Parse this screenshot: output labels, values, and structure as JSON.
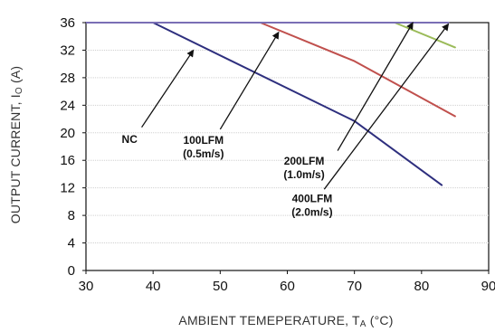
{
  "chart_data": {
    "type": "line",
    "xlabel": "AMBIENT TEMEPERATURE, T",
    "xlabel_sub": "A",
    "xlabel_suffix": " (°C)",
    "ylabel": "OUTPUT CURRENT, I",
    "ylabel_sub": "O",
    "ylabel_suffix": " (A)",
    "xlim": [
      30,
      90
    ],
    "ylim": [
      0,
      36
    ],
    "x_ticks": [
      30,
      40,
      50,
      60,
      70,
      80,
      90
    ],
    "y_ticks": [
      0,
      4,
      8,
      12,
      16,
      20,
      24,
      28,
      32,
      36
    ],
    "grid": true,
    "series": [
      {
        "name": "NC",
        "color": "#2e2f7e",
        "points": [
          [
            30,
            36
          ],
          [
            40,
            36
          ],
          [
            70,
            21.7
          ],
          [
            83,
            12.4
          ]
        ]
      },
      {
        "name": "100LFM (0.5m/s)",
        "color": "#c0504d",
        "points": [
          [
            30,
            36
          ],
          [
            56,
            36
          ],
          [
            70,
            30.4
          ],
          [
            85,
            22.4
          ]
        ]
      },
      {
        "name": "200LFM (1.0m/s)",
        "color": "#9bbb59",
        "points": [
          [
            30,
            36
          ],
          [
            76,
            36
          ],
          [
            85,
            32.4
          ]
        ]
      },
      {
        "name": "400LFM (2.0m/s)",
        "color": "#7a6fb5",
        "points": [
          [
            30,
            36
          ],
          [
            84,
            36
          ]
        ]
      }
    ],
    "annotations": [
      {
        "lines": [
          "NC"
        ],
        "label_at": [
          36.5,
          18.5
        ],
        "arrow_from": [
          38.3,
          20.8
        ],
        "arrow_to": [
          46,
          32
        ]
      },
      {
        "lines": [
          "100LFM",
          "(0.5m/s)"
        ],
        "label_at": [
          47.5,
          18.4
        ],
        "arrow_from": [
          50,
          20.5
        ],
        "arrow_to": [
          58.7,
          34.6
        ]
      },
      {
        "lines": [
          "200LFM",
          "(1.0m/s)"
        ],
        "label_at": [
          62.5,
          15.4
        ],
        "arrow_from": [
          67.5,
          17.4
        ],
        "arrow_to": [
          78.7,
          36
        ]
      },
      {
        "lines": [
          "400LFM",
          "(2.0m/s)"
        ],
        "label_at": [
          63.7,
          9.9
        ],
        "arrow_from": [
          65.5,
          11.8
        ],
        "arrow_to": [
          84,
          35.8
        ]
      }
    ]
  }
}
